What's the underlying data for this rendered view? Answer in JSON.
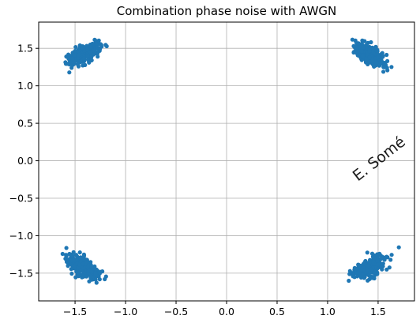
{
  "chart_data": {
    "type": "scatter",
    "title": "Combination phase noise with AWGN",
    "xlabel": "",
    "ylabel": "",
    "xlim": [
      -1.86,
      1.86
    ],
    "ylim": [
      -1.87,
      1.85
    ],
    "grid": true,
    "xticks": [
      -1.5,
      -1.0,
      -0.5,
      0.0,
      0.5,
      1.0,
      1.5
    ],
    "xtick_labels": [
      "−1.5",
      "−1.0",
      "−0.5",
      "0.0",
      "0.5",
      "1.0",
      "1.5"
    ],
    "yticks": [
      1.5,
      1.0,
      0.5,
      0.0,
      -0.5,
      -1.0,
      -1.5
    ],
    "ytick_labels": [
      "1.5",
      "1.0",
      "0.5",
      "0.0",
      "−0.5",
      "−1.0",
      "−1.5"
    ],
    "color": "#1f77b4",
    "clusters": [
      {
        "center": [
          -1.42,
          1.42
        ],
        "points": 300
      },
      {
        "center": [
          1.42,
          1.42
        ],
        "points": 300
      },
      {
        "center": [
          -1.42,
          -1.42
        ],
        "points": 300
      },
      {
        "center": [
          1.42,
          -1.42
        ],
        "points": 300
      }
    ],
    "annotation": "E. Somé"
  }
}
